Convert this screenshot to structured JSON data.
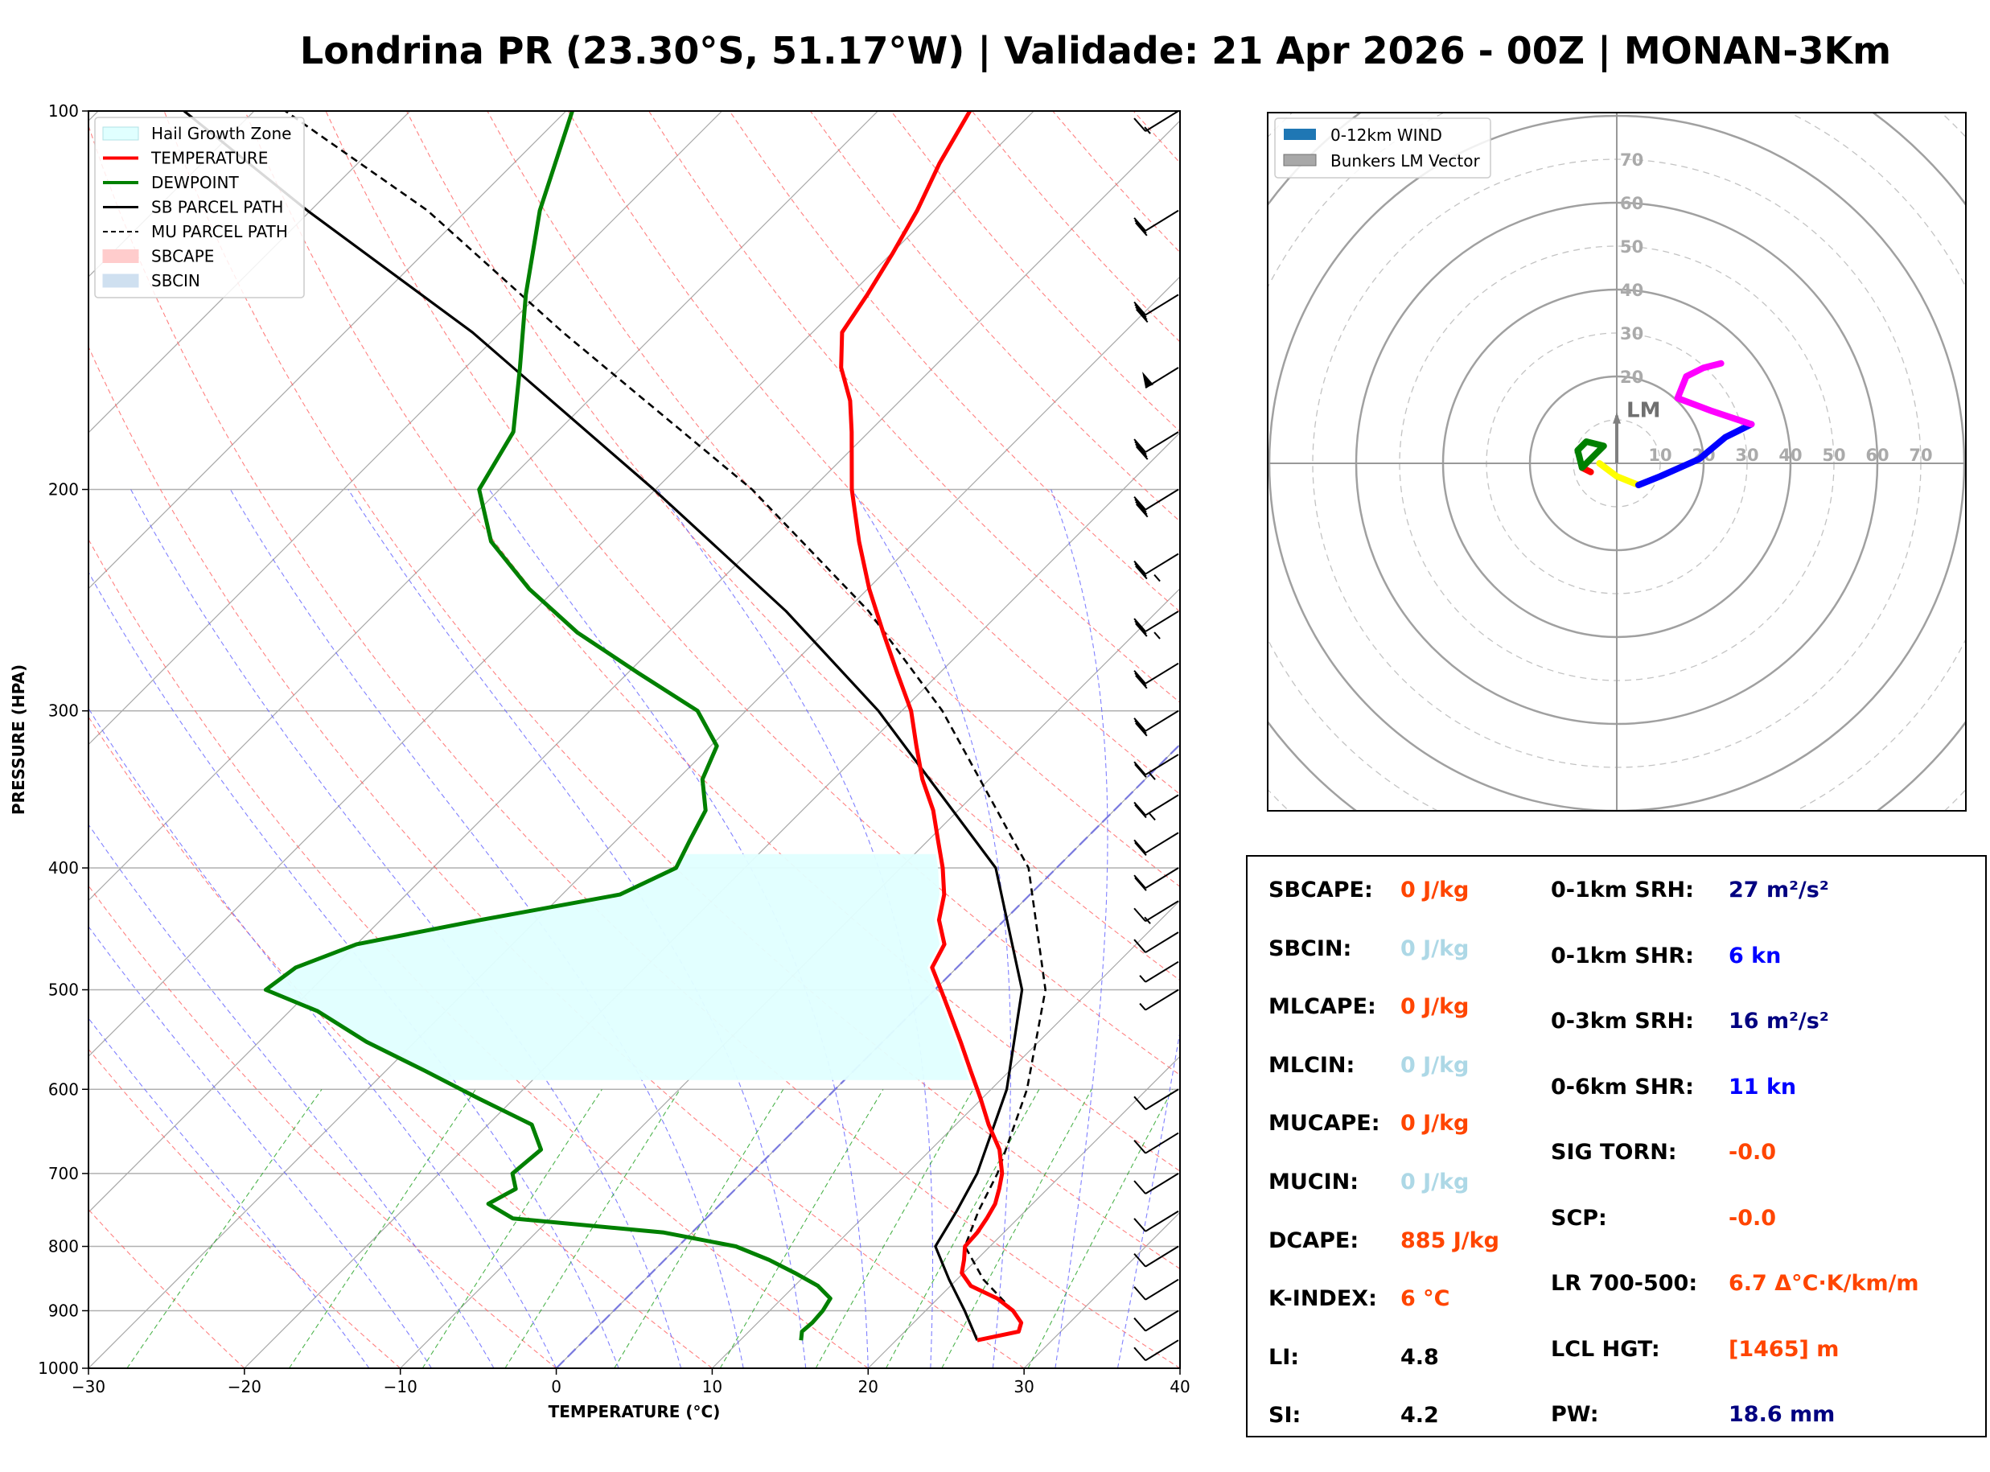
{
  "title": "Londrina PR (23.30°S, 51.17°W) | Validade: 21 Apr 2026 - 00Z | MONAN-3Km",
  "chart_data": [
    {
      "type": "line",
      "name": "skew-t",
      "xlabel": "TEMPERATURE (°C)",
      "ylabel": "PRESSURE (HPA)",
      "xlim": [
        -30,
        40
      ],
      "ylim": [
        1000,
        100
      ],
      "y_scale": "log",
      "skew": true,
      "grid": true,
      "legend_position": "top-left",
      "x_ticks": [
        "−30",
        "−20",
        "−10",
        "0",
        "10",
        "20",
        "30",
        "40"
      ],
      "y_ticks": [
        "100",
        "200",
        "300",
        "400",
        "500",
        "600",
        "700",
        "800",
        "900",
        "1000"
      ],
      "legend": [
        "Hail Growth Zone",
        "TEMPERATURE",
        "DEWPOINT",
        "SB PARCEL PATH",
        "MU PARCEL PATH",
        "SBCAPE",
        "SBCIN"
      ],
      "series": [
        {
          "name": "TEMPERATURE",
          "color": "#ff0000",
          "p": [
            950,
            935,
            920,
            900,
            880,
            860,
            840,
            820,
            800,
            780,
            760,
            740,
            720,
            700,
            670,
            640,
            610,
            580,
            550,
            520,
            500,
            480,
            460,
            440,
            420,
            400,
            380,
            360,
            340,
            320,
            300,
            280,
            260,
            240,
            220,
            200,
            180,
            170,
            160,
            150,
            140,
            130,
            120,
            110,
            100
          ],
          "values": [
            25.2,
            27.3,
            26.9,
            25.6,
            23.8,
            21.3,
            19.9,
            19.2,
            18.4,
            18.3,
            18.0,
            17.6,
            16.9,
            16.1,
            14.4,
            12.1,
            9.9,
            7.5,
            5.0,
            2.3,
            0.4,
            -1.6,
            -2.3,
            -4.2,
            -5.5,
            -7.3,
            -9.4,
            -11.6,
            -14.3,
            -16.8,
            -19.4,
            -22.7,
            -26.2,
            -29.9,
            -33.6,
            -37.4,
            -41.1,
            -43.2,
            -45.9,
            -48.1,
            -48.9,
            -49.9,
            -51.1,
            -52.7,
            -54.1
          ]
        },
        {
          "name": "DEWPOINT",
          "color": "#008000",
          "p": [
            950,
            935,
            920,
            900,
            880,
            860,
            840,
            820,
            800,
            780,
            760,
            740,
            720,
            700,
            670,
            640,
            610,
            580,
            550,
            520,
            500,
            480,
            460,
            440,
            420,
            400,
            380,
            360,
            340,
            320,
            300,
            280,
            260,
            240,
            220,
            200,
            180,
            160,
            140,
            120,
            100
          ],
          "values": [
            13.9,
            13.4,
            13.5,
            13.4,
            13.1,
            11.5,
            9.2,
            6.7,
            3.7,
            -1.8,
            -12.4,
            -14.9,
            -14.1,
            -15.3,
            -15.0,
            -17.2,
            -22.3,
            -27.5,
            -33.1,
            -38.2,
            -42.9,
            -42.4,
            -40.0,
            -33.6,
            -26.3,
            -24.4,
            -25.3,
            -26.2,
            -28.4,
            -29.6,
            -33.1,
            -39.3,
            -45.8,
            -51.7,
            -57.2,
            -61.3,
            -62.8,
            -66.5,
            -70.8,
            -75.3,
            -79.6
          ]
        },
        {
          "name": "SB PARCEL PATH",
          "color": "#000000",
          "p": [
            950,
            900,
            850,
            800,
            750,
            700,
            600,
            500,
            400,
            300,
            250,
            200,
            150,
            120,
            100
          ],
          "values": [
            25.2,
            22.5,
            19.5,
            16.5,
            15.6,
            14.5,
            11.0,
            5.6,
            -3.9,
            -21.5,
            -33.8,
            -50.1,
            -71.8,
            -90.2,
            -104.5
          ]
        },
        {
          "name": "MU PARCEL PATH",
          "color": "#000000",
          "dash": true,
          "p": [
            900,
            850,
            800,
            750,
            700,
            600,
            500,
            400,
            300,
            250,
            200,
            150,
            120,
            100
          ],
          "values": [
            25.6,
            21.7,
            18.4,
            17.0,
            15.8,
            12.3,
            7.1,
            -1.8,
            -17.4,
            -28.5,
            -43.8,
            -66.0,
            -82.5,
            -98.0
          ]
        }
      ],
      "hail_growth_zone": {
        "color": "#e0ffff",
        "p_bottom": 590,
        "p_top": 390
      },
      "wind_barbs_kt": [
        {
          "p": 950,
          "speed": 10
        },
        {
          "p": 900,
          "speed": 10
        },
        {
          "p": 850,
          "speed": 10
        },
        {
          "p": 800,
          "speed": 10
        },
        {
          "p": 750,
          "speed": 10
        },
        {
          "p": 700,
          "speed": 10
        },
        {
          "p": 650,
          "speed": 10
        },
        {
          "p": 600,
          "speed": 10
        },
        {
          "p": 500,
          "speed": 5
        },
        {
          "p": 475,
          "speed": 5
        },
        {
          "p": 450,
          "speed": 10
        },
        {
          "p": 425,
          "speed": 15
        },
        {
          "p": 400,
          "speed": 20
        },
        {
          "p": 375,
          "speed": 20
        },
        {
          "p": 350,
          "speed": 25
        },
        {
          "p": 325,
          "speed": 25
        },
        {
          "p": 300,
          "speed": 30
        },
        {
          "p": 275,
          "speed": 30
        },
        {
          "p": 250,
          "speed": 35
        },
        {
          "p": 225,
          "speed": 35
        },
        {
          "p": 200,
          "speed": 40
        },
        {
          "p": 180,
          "speed": 40
        },
        {
          "p": 160,
          "speed": 50
        },
        {
          "p": 140,
          "speed": 40
        },
        {
          "p": 120,
          "speed": 30
        },
        {
          "p": 100,
          "speed": 15
        }
      ]
    },
    {
      "type": "line",
      "name": "hodograph",
      "range_rings": [
        "10",
        "20",
        "30",
        "40",
        "50",
        "60",
        "70"
      ],
      "legend_position": "top-left",
      "legend": [
        "0-12km WIND",
        "Bunkers LM Vector"
      ],
      "lm_label": "LM",
      "bunkers_lm": {
        "u": 0,
        "v": 11
      },
      "segments": [
        {
          "color": "#ff0000",
          "points": [
            [
              -6,
              -2
            ],
            [
              -8,
              -1
            ]
          ]
        },
        {
          "color": "#008000",
          "points": [
            [
              -8,
              -1
            ],
            [
              -9,
              3
            ],
            [
              -7,
              5
            ],
            [
              -3,
              4
            ],
            [
              -6,
              1
            ],
            [
              -8,
              -1
            ]
          ]
        },
        {
          "color": "#ffff00",
          "points": [
            [
              -4,
              0
            ],
            [
              0,
              -3
            ],
            [
              5,
              -5
            ]
          ]
        },
        {
          "color": "#0000ff",
          "points": [
            [
              5,
              -5
            ],
            [
              10,
              -3
            ],
            [
              19,
              1
            ],
            [
              25,
              6
            ],
            [
              31,
              9
            ]
          ]
        },
        {
          "color": "#ff00ff",
          "points": [
            [
              31,
              9
            ],
            [
              22,
              12
            ],
            [
              14,
              15
            ],
            [
              16,
              20
            ],
            [
              20,
              22
            ],
            [
              24,
              23
            ]
          ]
        }
      ]
    }
  ],
  "params": {
    "rows_left": [
      {
        "label": "SBCAPE:",
        "value": "0 J/kg",
        "color": "#ff4500"
      },
      {
        "label": "SBCIN:",
        "value": "0 J/kg",
        "color": "#add8e6"
      },
      {
        "label": "MLCAPE:",
        "value": "0 J/kg",
        "color": "#ff4500"
      },
      {
        "label": "MLCIN:",
        "value": "0 J/kg",
        "color": "#add8e6"
      },
      {
        "label": "MUCAPE:",
        "value": "0 J/kg",
        "color": "#ff4500"
      },
      {
        "label": "MUCIN:",
        "value": "0 J/kg",
        "color": "#add8e6"
      },
      {
        "label": "DCAPE:",
        "value": "885 J/kg",
        "color": "#ff4500"
      },
      {
        "label": "K-INDEX:",
        "value": "6 °C",
        "color": "#ff4500"
      },
      {
        "label": "LI:",
        "value": "4.8",
        "color": "#000000"
      },
      {
        "label": "SI:",
        "value": "4.2",
        "color": "#000000"
      }
    ],
    "rows_right": [
      {
        "label": "0-1km SRH:",
        "value": "27 m²/s²",
        "color": "#000080"
      },
      {
        "label": "0-1km SHR:",
        "value": "6 kn",
        "color": "#0000ff"
      },
      {
        "label": "0-3km SRH:",
        "value": "16 m²/s²",
        "color": "#000080"
      },
      {
        "label": "0-6km SHR:",
        "value": "11 kn",
        "color": "#0000ff"
      },
      {
        "label": "SIG TORN:",
        "value": "-0.0",
        "color": "#ff4500"
      },
      {
        "label": "SCP:",
        "value": "-0.0",
        "color": "#ff4500"
      },
      {
        "label": "LR 700-500:",
        "value": "6.7 Δ°C·K/km/m",
        "color": "#ff4500"
      },
      {
        "label": "LCL HGT:",
        "value": "[1465] m",
        "color": "#ff4500"
      },
      {
        "label": "PW:",
        "value": "18.6 mm",
        "color": "#000080"
      }
    ]
  }
}
